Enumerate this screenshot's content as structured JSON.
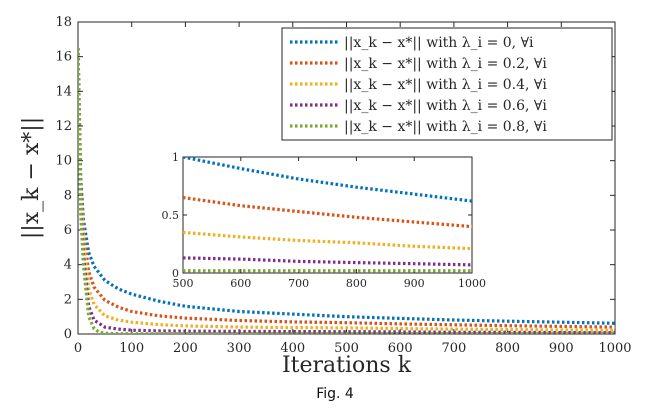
{
  "chart_data": [
    {
      "type": "line",
      "xlabel": "Iterations k",
      "ylabel": "||x_k − x*||",
      "xlim": [
        0,
        1000
      ],
      "ylim": [
        0,
        18
      ],
      "x_ticks": [
        0,
        100,
        200,
        300,
        400,
        500,
        600,
        700,
        800,
        900,
        1000
      ],
      "y_ticks": [
        0,
        2,
        4,
        6,
        8,
        10,
        12,
        14,
        16,
        18
      ],
      "grid": false,
      "legend_position": "top-right",
      "line_style": "dotted",
      "series": [
        {
          "name": "||x_k − x*|| with λ_i = 0, ∀i",
          "color": "#0072BD",
          "x": [
            0,
            5,
            10,
            20,
            30,
            50,
            75,
            100,
            150,
            200,
            300,
            400,
            500,
            600,
            700,
            800,
            900,
            1000
          ],
          "y": [
            16.5,
            9.0,
            6.6,
            4.7,
            3.9,
            3.1,
            2.6,
            2.3,
            1.9,
            1.6,
            1.3,
            1.15,
            1.0,
            0.9,
            0.81,
            0.74,
            0.68,
            0.62
          ]
        },
        {
          "name": "||x_k − x*|| with λ_i = 0.2, ∀i",
          "color": "#D95319",
          "x": [
            0,
            5,
            10,
            20,
            30,
            50,
            75,
            100,
            150,
            200,
            300,
            400,
            500,
            600,
            700,
            800,
            900,
            1000
          ],
          "y": [
            16.5,
            8.5,
            5.9,
            3.6,
            2.7,
            1.95,
            1.55,
            1.3,
            1.05,
            0.92,
            0.78,
            0.7,
            0.65,
            0.58,
            0.53,
            0.48,
            0.44,
            0.4
          ]
        },
        {
          "name": "||x_k − x*|| with λ_i = 0.4, ∀i",
          "color": "#EDB120",
          "x": [
            0,
            5,
            10,
            20,
            30,
            50,
            75,
            100,
            150,
            200,
            300,
            400,
            500,
            600,
            700,
            800,
            900,
            1000
          ],
          "y": [
            16.5,
            8.0,
            5.3,
            2.6,
            1.7,
            1.05,
            0.8,
            0.68,
            0.54,
            0.47,
            0.4,
            0.37,
            0.35,
            0.31,
            0.28,
            0.26,
            0.23,
            0.21
          ]
        },
        {
          "name": "||x_k − x*|| with λ_i = 0.6, ∀i",
          "color": "#7E2F8E",
          "x": [
            0,
            5,
            10,
            20,
            30,
            50,
            75,
            100,
            150,
            200,
            300,
            400,
            500,
            600,
            700,
            800,
            900,
            1000
          ],
          "y": [
            16.5,
            7.5,
            4.6,
            1.6,
            0.8,
            0.4,
            0.28,
            0.22,
            0.18,
            0.16,
            0.15,
            0.14,
            0.13,
            0.12,
            0.1,
            0.09,
            0.08,
            0.07
          ]
        },
        {
          "name": "||x_k − x*|| with λ_i = 0.8, ∀i",
          "color": "#77AC30",
          "x": [
            0,
            5,
            10,
            20,
            30,
            40,
            50,
            60,
            80,
            100,
            200,
            300,
            500,
            700,
            1000
          ],
          "y": [
            16.5,
            7.0,
            4.0,
            1.0,
            0.3,
            0.1,
            0.05,
            0.03,
            0.02,
            0.02,
            0.02,
            0.02,
            0.02,
            0.02,
            0.02
          ]
        }
      ]
    },
    {
      "type": "line",
      "role": "inset",
      "xlim": [
        500,
        1000
      ],
      "ylim": [
        0,
        1
      ],
      "x_ticks": [
        500,
        600,
        700,
        800,
        900,
        1000
      ],
      "y_ticks": [
        0,
        0.5,
        1
      ],
      "line_style": "dotted",
      "series": [
        {
          "color": "#0072BD",
          "x": [
            500,
            600,
            700,
            800,
            900,
            1000
          ],
          "y": [
            1.0,
            0.9,
            0.81,
            0.74,
            0.68,
            0.62
          ]
        },
        {
          "color": "#D95319",
          "x": [
            500,
            600,
            700,
            800,
            900,
            1000
          ],
          "y": [
            0.65,
            0.58,
            0.53,
            0.48,
            0.44,
            0.4
          ]
        },
        {
          "color": "#EDB120",
          "x": [
            500,
            600,
            700,
            800,
            900,
            1000
          ],
          "y": [
            0.35,
            0.31,
            0.28,
            0.26,
            0.23,
            0.21
          ]
        },
        {
          "color": "#7E2F8E",
          "x": [
            500,
            600,
            700,
            800,
            900,
            1000
          ],
          "y": [
            0.13,
            0.12,
            0.1,
            0.09,
            0.08,
            0.07
          ]
        },
        {
          "color": "#77AC30",
          "x": [
            500,
            600,
            700,
            800,
            900,
            1000
          ],
          "y": [
            0.02,
            0.02,
            0.02,
            0.02,
            0.02,
            0.02
          ]
        }
      ]
    }
  ],
  "caption": "Fig. 4"
}
